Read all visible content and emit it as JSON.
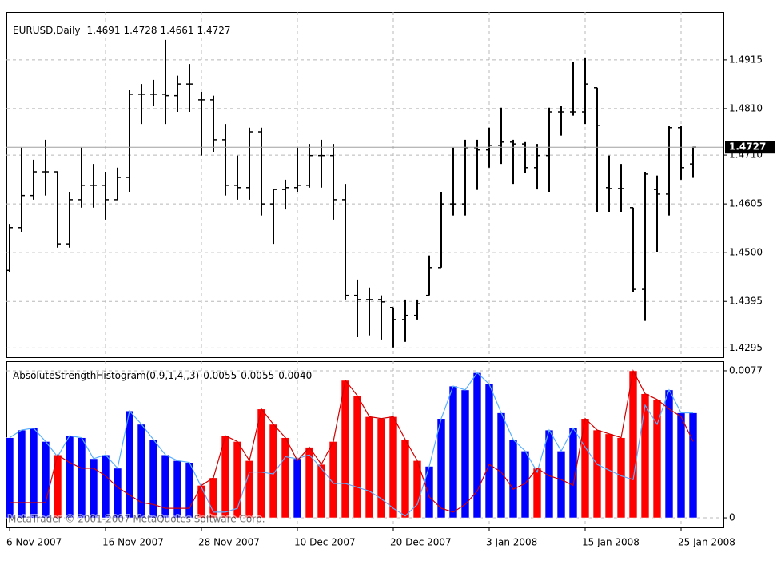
{
  "chart_data": [
    {
      "type": "ohlc",
      "title": "EURUSD,Daily",
      "open": [
        1.4462,
        1.4554,
        1.4623,
        1.4674,
        1.4674,
        1.4519,
        1.4614,
        1.4645,
        1.4645,
        1.4614,
        1.4662,
        1.4841,
        1.4841,
        1.4841,
        1.4838,
        1.4863,
        1.4829,
        1.4829,
        1.4743,
        1.4645,
        1.464,
        1.476,
        1.4605,
        1.4636,
        1.464,
        1.4645,
        1.4709,
        1.4709,
        1.4614,
        1.4408,
        1.4399,
        1.4399,
        1.4382,
        1.4356,
        1.4365,
        1.4408,
        1.4468,
        1.4605,
        1.4605,
        1.4726,
        1.4721,
        1.4731,
        1.4738,
        1.4734,
        1.4683,
        1.4709,
        1.4803,
        1.4803,
        1.4803,
        1.4855,
        1.464,
        1.4638,
        1.4597,
        1.4421,
        1.4636,
        1.4626,
        1.4769,
        1.4691
      ],
      "high": [
        1.4562,
        1.4726,
        1.47,
        1.4743,
        1.4674,
        1.4631,
        1.4726,
        1.4691,
        1.4674,
        1.4683,
        1.4851,
        1.4863,
        1.4872,
        1.4958,
        1.4881,
        1.4906,
        1.4846,
        1.4838,
        1.4777,
        1.4709,
        1.4769,
        1.4769,
        1.4636,
        1.4657,
        1.4726,
        1.4734,
        1.4743,
        1.4734,
        1.4648,
        1.4442,
        1.4425,
        1.4408,
        1.4382,
        1.4399,
        1.4399,
        1.4494,
        1.4631,
        1.4726,
        1.4743,
        1.4743,
        1.4769,
        1.4812,
        1.4743,
        1.4738,
        1.4734,
        1.4812,
        1.4815,
        1.491,
        1.492,
        1.4855,
        1.4709,
        1.4691,
        1.4597,
        1.4674,
        1.4666,
        1.4772,
        1.4772,
        1.4728
      ],
      "low": [
        1.4459,
        1.4545,
        1.4614,
        1.4623,
        1.4511,
        1.4511,
        1.4597,
        1.4597,
        1.4571,
        1.4614,
        1.4631,
        1.4777,
        1.4815,
        1.4777,
        1.4803,
        1.4803,
        1.4709,
        1.4717,
        1.4623,
        1.4614,
        1.4614,
        1.458,
        1.4519,
        1.4593,
        1.4631,
        1.464,
        1.464,
        1.4571,
        1.4399,
        1.4318,
        1.4322,
        1.4313,
        1.4296,
        1.4308,
        1.4356,
        1.4408,
        1.4468,
        1.458,
        1.458,
        1.4635,
        1.4683,
        1.4691,
        1.4648,
        1.4671,
        1.4636,
        1.4631,
        1.4752,
        1.4795,
        1.4777,
        1.4588,
        1.4588,
        1.4588,
        1.4416,
        1.4353,
        1.4502,
        1.458,
        1.4657,
        1.4661
      ],
      "close": [
        1.4554,
        1.4623,
        1.4674,
        1.4674,
        1.4519,
        1.4614,
        1.4645,
        1.4645,
        1.4614,
        1.4662,
        1.4841,
        1.4841,
        1.4841,
        1.4838,
        1.4863,
        1.4863,
        1.4829,
        1.4743,
        1.4645,
        1.464,
        1.476,
        1.4605,
        1.4636,
        1.464,
        1.4645,
        1.4709,
        1.4709,
        1.4614,
        1.4408,
        1.4399,
        1.4399,
        1.4394,
        1.4356,
        1.4365,
        1.439,
        1.4468,
        1.4605,
        1.4605,
        1.4726,
        1.4721,
        1.4731,
        1.4738,
        1.4734,
        1.4683,
        1.4709,
        1.4803,
        1.4803,
        1.4803,
        1.4863,
        1.4774,
        1.4638,
        1.4638,
        1.4421,
        1.4669,
        1.4626,
        1.4769,
        1.4683,
        1.4727
      ],
      "color": "#000000",
      "ylim": [
        1.4275,
        1.5018
      ],
      "yticks": [
        1.4915,
        {
          "value": 1.481,
          "label": "1.4810"
        },
        {
          "value": 1.471,
          "label": "1.4710"
        },
        1.4605,
        {
          "value": 1.45,
          "label": "1.4500"
        },
        1.4395,
        1.4295
      ],
      "last_price": 1.4727,
      "grid": true
    },
    {
      "type": "histogram",
      "title": "AbsoluteStrengthHistogram(0,9,1,4,,3)",
      "header_values": [
        "0.0055",
        "0.0055",
        "0.0040"
      ],
      "categories": [
        "6 Nov 2007",
        null,
        null,
        null,
        null,
        null,
        null,
        null,
        "16 Nov 2007",
        null,
        null,
        null,
        null,
        null,
        null,
        null,
        "28 Nov 2007",
        null,
        null,
        null,
        null,
        null,
        null,
        null,
        "10 Dec 2007",
        null,
        null,
        null,
        null,
        null,
        null,
        null,
        "20 Dec 2007",
        null,
        null,
        null,
        null,
        null,
        null,
        null,
        "3 Jan 2008",
        null,
        null,
        null,
        null,
        null,
        null,
        null,
        "15 Jan 2008",
        null,
        null,
        null,
        null,
        null,
        null,
        null,
        "25 Jan 2008",
        null
      ],
      "series": [
        {
          "color": "#0000ff",
          "line_color": "#5aaeff",
          "values": [
            0.0042,
            0.0046,
            0.0047,
            0.004,
            0.0032,
            0.0043,
            0.0042,
            0.0031,
            0.0033,
            0.0026,
            0.0056,
            0.0049,
            0.0041,
            0.0033,
            0.003,
            0.0029,
            0.0016,
            0.0003,
            0.0003,
            0.0005,
            0.0024,
            0.0024,
            0.0023,
            0.0032,
            0.0031,
            0.0033,
            0.0026,
            0.0018,
            0.0018,
            0.0016,
            0.0014,
            0.001,
            0.0005,
            0.0001,
            0.0007,
            0.0027,
            0.0052,
            0.0069,
            0.0067,
            0.0076,
            0.007,
            0.0055,
            0.0041,
            0.0035,
            0.0024,
            0.0046,
            0.0035,
            0.0047,
            0.0037,
            0.0028,
            0.0025,
            0.0022,
            0.002,
            0.0059,
            0.0049,
            0.0067,
            0.0055,
            0.0055
          ]
        },
        {
          "color": "#ff0000",
          "line_color": "#d00000",
          "values": [
            0.0008,
            0.0008,
            0.0008,
            0.0008,
            0.0033,
            0.0029,
            0.0026,
            0.0026,
            0.0022,
            0.0016,
            0.0012,
            0.0008,
            0.0007,
            0.0005,
            0.0005,
            0.0005,
            0.0017,
            0.0021,
            0.0043,
            0.004,
            0.003,
            0.0057,
            0.0049,
            0.0042,
            0.003,
            0.0037,
            0.0028,
            0.004,
            0.0072,
            0.0064,
            0.0053,
            0.0052,
            0.0053,
            0.0041,
            0.003,
            0.0011,
            0.0005,
            0.0003,
            0.0007,
            0.0014,
            0.0028,
            0.0024,
            0.0015,
            0.0018,
            0.0026,
            0.0022,
            0.002,
            0.0017,
            0.0052,
            0.0046,
            0.0044,
            0.0042,
            0.0077,
            0.0065,
            0.0062,
            0.0057,
            0.0053,
            0.004
          ]
        }
      ],
      "ylim": [
        -0.0005,
        0.0082
      ],
      "yticks": [
        0.0077,
        0
      ],
      "grid": true,
      "watermark": "MetaTrader © 2001-2007 MetaQuotes Software Corp."
    }
  ]
}
